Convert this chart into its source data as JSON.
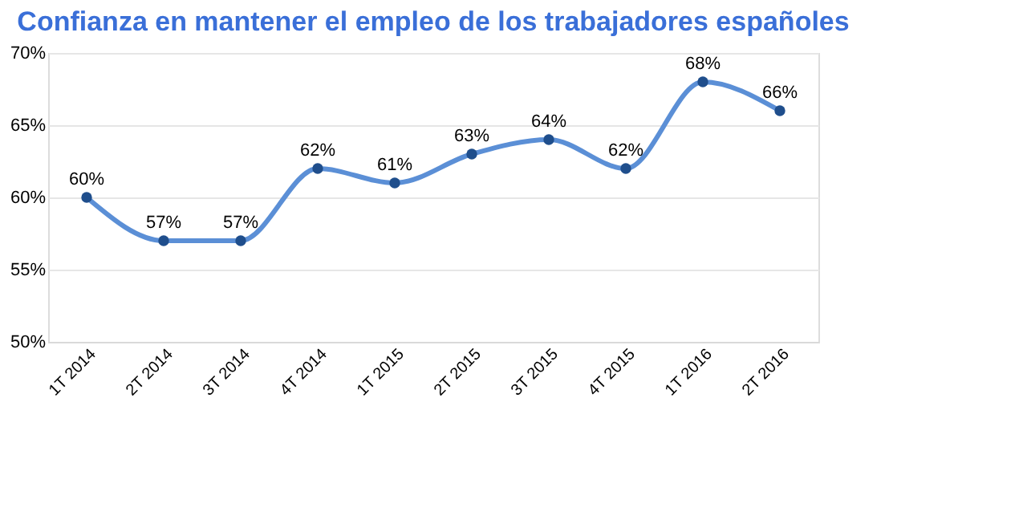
{
  "chart_data": {
    "type": "line",
    "title": "Confianza en mantener el empleo de los trabajadores españoles",
    "categories": [
      "1T 2014",
      "2T 2014",
      "3T 2014",
      "4T 2014",
      "1T 2015",
      "2T 2015",
      "3T 2015",
      "4T 2015",
      "1T 2016",
      "2T 2016"
    ],
    "series": [
      {
        "color": "#5b8fd6",
        "values": [
          60,
          57,
          57,
          62,
          61,
          63,
          64,
          62,
          68,
          66
        ],
        "value_labels": [
          "60%",
          "57%",
          "57%",
          "62%",
          "61%",
          "63%",
          "64%",
          "62%",
          "68%",
          "66%"
        ]
      }
    ],
    "ylim": [
      50,
      70
    ],
    "yticks": [
      {
        "value": 50,
        "label": "50%"
      },
      {
        "value": 55,
        "label": "55%"
      },
      {
        "value": 60,
        "label": "60%"
      },
      {
        "value": 65,
        "label": "65%"
      },
      {
        "value": 70,
        "label": "70%"
      }
    ],
    "grid": "y",
    "marker": "circle"
  }
}
